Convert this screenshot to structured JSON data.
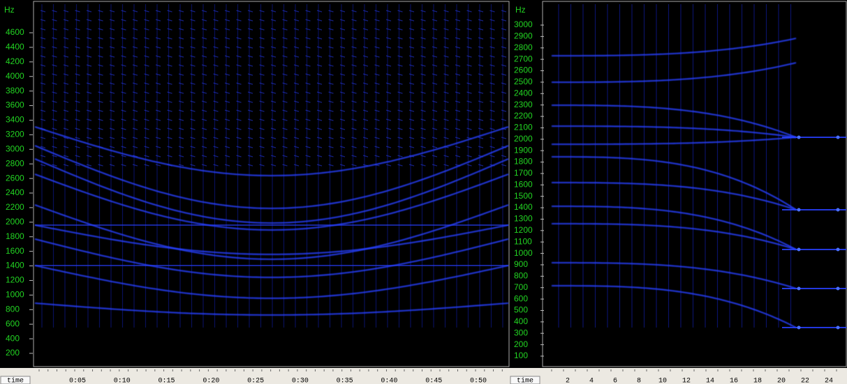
{
  "panels": [
    {
      "y_unit": "Hz",
      "y_ticks": [
        4600,
        4400,
        4200,
        4000,
        3800,
        3600,
        3400,
        3200,
        3000,
        2800,
        2600,
        2400,
        2200,
        2000,
        1800,
        1600,
        1400,
        1200,
        1000,
        800,
        600,
        400,
        200
      ],
      "x_label": "time",
      "x_ticks": [
        "0:05",
        "0:10",
        "0:15",
        "0:20",
        "0:25",
        "0:30",
        "0:35",
        "0:40",
        "0:45",
        "0:50"
      ]
    },
    {
      "y_unit": "Hz",
      "y_ticks": [
        3000,
        2900,
        2800,
        2700,
        2600,
        2500,
        2400,
        2300,
        2200,
        2100,
        2000,
        1900,
        1800,
        1700,
        1600,
        1500,
        1400,
        1300,
        1200,
        1100,
        1000,
        900,
        800,
        700,
        600,
        500,
        400,
        300,
        200,
        100
      ],
      "x_label": "time",
      "x_ticks": [
        2,
        4,
        6,
        8,
        10,
        12,
        14,
        16,
        18,
        20,
        22,
        24
      ]
    }
  ]
}
